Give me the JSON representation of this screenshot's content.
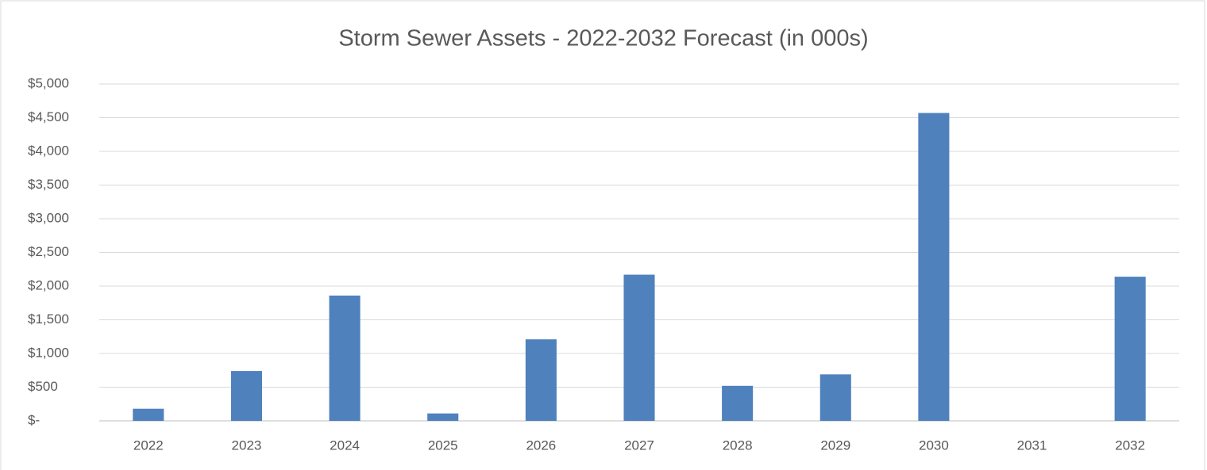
{
  "chart_data": {
    "type": "bar",
    "title": "Storm Sewer Assets - 2022-2032 Forecast (in 000s)",
    "categories": [
      "2022",
      "2023",
      "2024",
      "2025",
      "2026",
      "2027",
      "2028",
      "2029",
      "2030",
      "2031",
      "2032"
    ],
    "values": [
      180,
      740,
      1860,
      110,
      1210,
      2170,
      520,
      690,
      4570,
      0,
      2140
    ],
    "color": "#4f81bd",
    "ylim": [
      0,
      5000
    ],
    "yticks": [
      {
        "value": 0,
        "label": "$-"
      },
      {
        "value": 500,
        "label": "$500"
      },
      {
        "value": 1000,
        "label": "$1,000"
      },
      {
        "value": 1500,
        "label": "$1,500"
      },
      {
        "value": 2000,
        "label": "$2,000"
      },
      {
        "value": 2500,
        "label": "$2,500"
      },
      {
        "value": 3000,
        "label": "$3,000"
      },
      {
        "value": 3500,
        "label": "$3,500"
      },
      {
        "value": 4000,
        "label": "$4,000"
      },
      {
        "value": 4500,
        "label": "$4,500"
      },
      {
        "value": 5000,
        "label": "$5,000"
      }
    ],
    "grid": true
  }
}
